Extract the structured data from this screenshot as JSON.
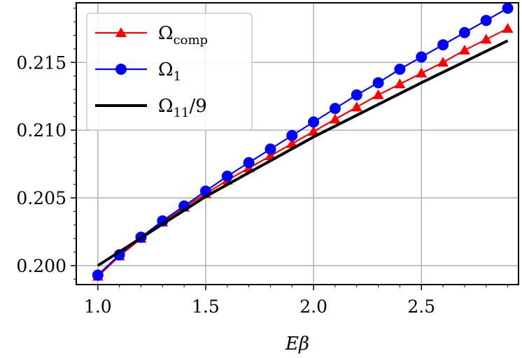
{
  "chart_data": {
    "type": "line",
    "xlabel": "Eβ",
    "ylabel": "",
    "xlim": [
      0.9,
      2.95
    ],
    "ylim": [
      0.1986,
      0.2194
    ],
    "grid": true,
    "legend_position": "top-left",
    "x_ticks": [
      1.0,
      1.5,
      2.0,
      2.5
    ],
    "x_tick_labels": [
      "1.0",
      "1.5",
      "2.0",
      "2.5"
    ],
    "y_ticks": [
      0.2,
      0.205,
      0.21,
      0.215
    ],
    "y_tick_labels": [
      "0.200",
      "0.205",
      "0.210",
      "0.215"
    ],
    "series": [
      {
        "name": "Ω_comp",
        "legend_main": "Ω",
        "legend_sub": "comp",
        "legend_suffix": "",
        "color": "#ff0000",
        "marker": "triangle",
        "x": [
          1.0,
          1.1,
          1.2,
          1.3,
          1.4,
          1.5,
          1.6,
          1.7,
          1.8,
          1.9,
          2.0,
          2.1,
          2.2,
          2.3,
          2.4,
          2.5,
          2.6,
          2.7,
          2.8,
          2.9
        ],
        "y": [
          0.1992,
          0.2007,
          0.202,
          0.2032,
          0.2043,
          0.2053,
          0.2063,
          0.2072,
          0.2081,
          0.209,
          0.2099,
          0.2108,
          0.2117,
          0.2126,
          0.2134,
          0.2142,
          0.215,
          0.2159,
          0.2167,
          0.2175
        ]
      },
      {
        "name": "Ω_1",
        "legend_main": "Ω",
        "legend_sub": "1",
        "legend_suffix": "",
        "color": "#0000ff",
        "marker": "circle",
        "x": [
          1.0,
          1.1,
          1.2,
          1.3,
          1.4,
          1.5,
          1.6,
          1.7,
          1.8,
          1.9,
          2.0,
          2.1,
          2.2,
          2.3,
          2.4,
          2.5,
          2.6,
          2.7,
          2.8,
          2.9
        ],
        "y": [
          0.1993,
          0.2008,
          0.2021,
          0.2033,
          0.2044,
          0.2055,
          0.2066,
          0.2076,
          0.2086,
          0.2096,
          0.2106,
          0.2116,
          0.2126,
          0.2135,
          0.2145,
          0.2154,
          0.2163,
          0.2172,
          0.2181,
          0.219
        ]
      },
      {
        "name": "Ω_11/9",
        "legend_main": "Ω",
        "legend_sub": "11",
        "legend_suffix": "/9",
        "color": "#000000",
        "marker": "none",
        "x": [
          1.0,
          1.5,
          2.0,
          2.5,
          2.9
        ],
        "y": [
          0.2,
          0.2051,
          0.2095,
          0.2135,
          0.2166
        ]
      }
    ]
  }
}
